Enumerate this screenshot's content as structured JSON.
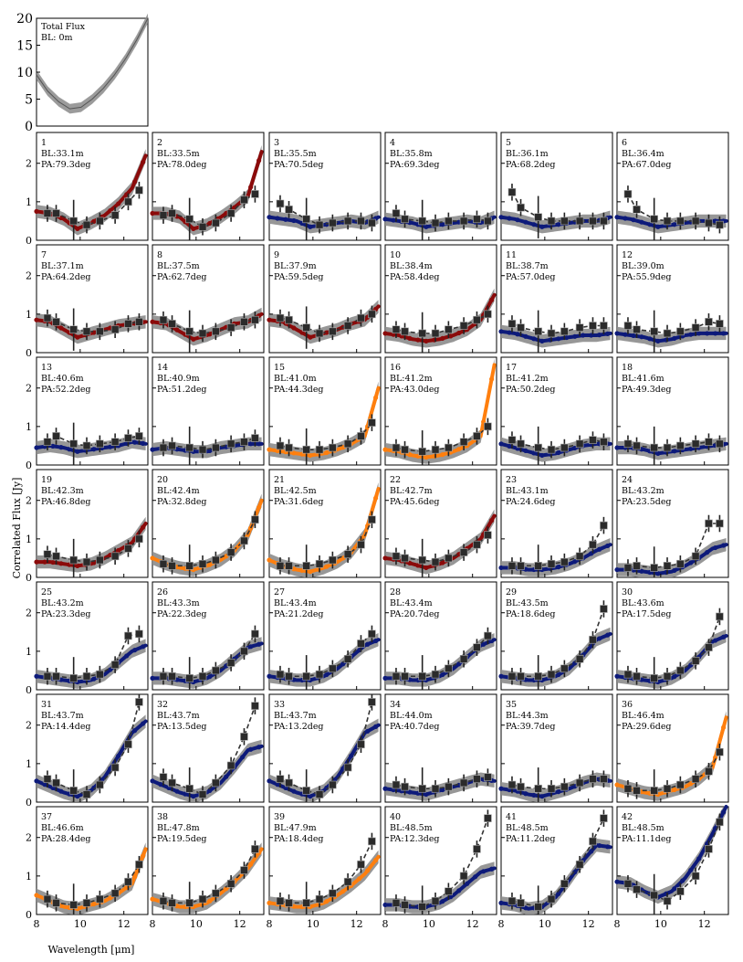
{
  "figure": {
    "ylabel": "Correlated Flux [Jy]",
    "xlabel": "Wavelength [μm]"
  },
  "chart_data": [
    {
      "type": "line",
      "id": "total-flux",
      "label": "Total Flux",
      "baseline": "BL: 0m",
      "xlim": [
        8,
        13
      ],
      "ylim": [
        0,
        20
      ],
      "yticks": [
        0,
        5,
        10,
        15,
        20
      ],
      "x": [
        8.0,
        8.5,
        9.0,
        9.5,
        10.0,
        10.5,
        11.0,
        11.5,
        12.0,
        12.5,
        13.0
      ],
      "y": [
        9.5,
        6.5,
        4.5,
        3.2,
        3.5,
        5.0,
        7.0,
        9.5,
        12.5,
        16.0,
        20.0
      ]
    }
  ],
  "panels": [
    {
      "num": "1",
      "bl": "BL:33.1m",
      "pa": "PA:79.3deg",
      "color": "#8b0a0a",
      "model": [
        0.75,
        0.7,
        0.55,
        0.3,
        0.45,
        0.65,
        0.95,
        1.35,
        2.2
      ],
      "points": [
        0.7,
        0.7,
        0.5,
        0.4,
        0.5,
        0.65,
        1.0,
        1.3
      ]
    },
    {
      "num": "2",
      "bl": "BL:33.5m",
      "pa": "PA:78.0deg",
      "color": "#8b0a0a",
      "model": [
        0.7,
        0.7,
        0.6,
        0.3,
        0.4,
        0.6,
        0.85,
        1.15,
        2.3
      ],
      "points": [
        0.65,
        0.7,
        0.55,
        0.35,
        0.45,
        0.7,
        1.05,
        1.2
      ]
    },
    {
      "num": "3",
      "bl": "BL:35.5m",
      "pa": "PA:70.5deg",
      "color": "#0d1a7a",
      "model": [
        0.6,
        0.55,
        0.5,
        0.35,
        0.4,
        0.45,
        0.5,
        0.45,
        0.6
      ],
      "points": [
        0.95,
        0.8,
        0.55,
        0.4,
        0.45,
        0.5,
        0.5,
        0.45
      ]
    },
    {
      "num": "4",
      "bl": "BL:35.8m",
      "pa": "PA:69.3deg",
      "color": "#0d1a7a",
      "model": [
        0.55,
        0.5,
        0.45,
        0.35,
        0.4,
        0.45,
        0.5,
        0.45,
        0.6
      ],
      "points": [
        0.7,
        0.55,
        0.5,
        0.45,
        0.5,
        0.5,
        0.55,
        0.5
      ]
    },
    {
      "num": "5",
      "bl": "BL:36.1m",
      "pa": "PA:68.2deg",
      "color": "#0d1a7a",
      "model": [
        0.6,
        0.55,
        0.45,
        0.35,
        0.4,
        0.45,
        0.5,
        0.5,
        0.6
      ],
      "points": [
        1.25,
        0.85,
        0.6,
        0.5,
        0.5,
        0.5,
        0.5,
        0.5
      ]
    },
    {
      "num": "6",
      "bl": "BL:36.4m",
      "pa": "PA:67.0deg",
      "color": "#0d1a7a",
      "model": [
        0.6,
        0.55,
        0.45,
        0.35,
        0.4,
        0.45,
        0.5,
        0.5,
        0.5
      ],
      "points": [
        1.2,
        0.8,
        0.55,
        0.5,
        0.5,
        0.5,
        0.45,
        0.4
      ]
    },
    {
      "num": "7",
      "bl": "BL:37.1m",
      "pa": "PA:64.2deg",
      "color": "#8b0a0a",
      "model": [
        0.85,
        0.8,
        0.6,
        0.4,
        0.5,
        0.6,
        0.7,
        0.75,
        0.8
      ],
      "points": [
        0.9,
        0.8,
        0.6,
        0.55,
        0.55,
        0.6,
        0.75,
        0.8
      ]
    },
    {
      "num": "8",
      "bl": "BL:37.5m",
      "pa": "PA:62.7deg",
      "color": "#8b0a0a",
      "model": [
        0.8,
        0.75,
        0.55,
        0.35,
        0.45,
        0.6,
        0.75,
        0.8,
        1.0
      ],
      "points": [
        0.85,
        0.75,
        0.55,
        0.5,
        0.55,
        0.65,
        0.8,
        0.85
      ]
    },
    {
      "num": "9",
      "bl": "BL:37.9m",
      "pa": "PA:59.5deg",
      "color": "#8b0a0a",
      "model": [
        0.85,
        0.8,
        0.6,
        0.4,
        0.5,
        0.6,
        0.75,
        0.85,
        1.2
      ],
      "points": [
        0.9,
        0.85,
        0.65,
        0.5,
        0.55,
        0.7,
        0.9,
        1.0
      ]
    },
    {
      "num": "10",
      "bl": "BL:38.4m",
      "pa": "PA:58.4deg",
      "color": "#8b0a0a",
      "model": [
        0.5,
        0.45,
        0.35,
        0.3,
        0.35,
        0.45,
        0.6,
        0.85,
        1.5
      ],
      "points": [
        0.6,
        0.55,
        0.5,
        0.5,
        0.6,
        0.7,
        0.85,
        1.0
      ]
    },
    {
      "num": "11",
      "bl": "BL:38.7m",
      "pa": "PA:57.0deg",
      "color": "#0d1a7a",
      "model": [
        0.55,
        0.5,
        0.4,
        0.3,
        0.35,
        0.4,
        0.45,
        0.45,
        0.5
      ],
      "points": [
        0.75,
        0.65,
        0.55,
        0.5,
        0.55,
        0.65,
        0.7,
        0.7
      ]
    },
    {
      "num": "12",
      "bl": "BL:39.0m",
      "pa": "PA:55.9deg",
      "color": "#0d1a7a",
      "model": [
        0.5,
        0.45,
        0.4,
        0.3,
        0.35,
        0.45,
        0.5,
        0.5,
        0.5
      ],
      "points": [
        0.7,
        0.6,
        0.55,
        0.5,
        0.55,
        0.65,
        0.8,
        0.75
      ]
    },
    {
      "num": "13",
      "bl": "BL:40.6m",
      "pa": "PA:52.2deg",
      "color": "#0d1a7a",
      "model": [
        0.45,
        0.5,
        0.45,
        0.35,
        0.4,
        0.45,
        0.5,
        0.6,
        0.55
      ],
      "points": [
        0.6,
        0.75,
        0.55,
        0.5,
        0.55,
        0.6,
        0.7,
        0.75
      ]
    },
    {
      "num": "14",
      "bl": "BL:40.9m",
      "pa": "PA:51.2deg",
      "color": "#0d1a7a",
      "model": [
        0.4,
        0.45,
        0.4,
        0.35,
        0.35,
        0.45,
        0.5,
        0.55,
        0.55
      ],
      "points": [
        0.45,
        0.5,
        0.45,
        0.4,
        0.45,
        0.55,
        0.6,
        0.7
      ]
    },
    {
      "num": "15",
      "bl": "BL:41.0m",
      "pa": "PA:44.3deg",
      "color": "#ff7f0e",
      "model": [
        0.4,
        0.35,
        0.3,
        0.25,
        0.3,
        0.4,
        0.55,
        0.75,
        2.0
      ],
      "points": [
        0.5,
        0.45,
        0.4,
        0.4,
        0.45,
        0.55,
        0.75,
        1.1
      ]
    },
    {
      "num": "16",
      "bl": "BL:41.2m",
      "pa": "PA:43.0deg",
      "color": "#ff7f0e",
      "model": [
        0.4,
        0.35,
        0.25,
        0.2,
        0.25,
        0.35,
        0.5,
        0.75,
        2.6
      ],
      "points": [
        0.45,
        0.4,
        0.35,
        0.4,
        0.45,
        0.6,
        0.75,
        1.0
      ]
    },
    {
      "num": "17",
      "bl": "BL:41.2m",
      "pa": "PA:50.2deg",
      "color": "#0d1a7a",
      "model": [
        0.55,
        0.45,
        0.35,
        0.25,
        0.3,
        0.4,
        0.5,
        0.55,
        0.55
      ],
      "points": [
        0.65,
        0.55,
        0.45,
        0.4,
        0.45,
        0.55,
        0.65,
        0.6
      ]
    },
    {
      "num": "18",
      "bl": "BL:41.6m",
      "pa": "PA:49.3deg",
      "color": "#0d1a7a",
      "model": [
        0.45,
        0.45,
        0.4,
        0.3,
        0.35,
        0.4,
        0.45,
        0.5,
        0.55
      ],
      "points": [
        0.55,
        0.5,
        0.45,
        0.45,
        0.5,
        0.55,
        0.6,
        0.55
      ]
    },
    {
      "num": "19",
      "bl": "BL:42.3m",
      "pa": "PA:46.8deg",
      "color": "#8b0a0a",
      "model": [
        0.4,
        0.4,
        0.35,
        0.3,
        0.35,
        0.5,
        0.7,
        0.9,
        1.4
      ],
      "points": [
        0.6,
        0.55,
        0.45,
        0.4,
        0.45,
        0.55,
        0.75,
        1.0
      ]
    },
    {
      "num": "20",
      "bl": "BL:42.4m",
      "pa": "PA:32.8deg",
      "color": "#ff7f0e",
      "model": [
        0.5,
        0.35,
        0.25,
        0.2,
        0.3,
        0.45,
        0.7,
        1.1,
        2.0
      ],
      "points": [
        0.35,
        0.3,
        0.3,
        0.35,
        0.45,
        0.65,
        0.95,
        1.5
      ]
    },
    {
      "num": "21",
      "bl": "BL:42.5m",
      "pa": "PA:31.6deg",
      "color": "#ff7f0e",
      "model": [
        0.45,
        0.3,
        0.2,
        0.15,
        0.25,
        0.4,
        0.65,
        1.1,
        2.3
      ],
      "points": [
        0.3,
        0.3,
        0.3,
        0.35,
        0.45,
        0.6,
        0.85,
        1.5
      ]
    },
    {
      "num": "22",
      "bl": "BL:42.7m",
      "pa": "PA:45.6deg",
      "color": "#8b0a0a",
      "model": [
        0.5,
        0.45,
        0.35,
        0.25,
        0.35,
        0.5,
        0.75,
        1.0,
        1.6
      ],
      "points": [
        0.55,
        0.5,
        0.45,
        0.4,
        0.5,
        0.65,
        0.85,
        1.1
      ]
    },
    {
      "num": "23",
      "bl": "BL:43.1m",
      "pa": "PA:24.6deg",
      "color": "#0d1a7a",
      "model": [
        0.25,
        0.25,
        0.2,
        0.2,
        0.25,
        0.35,
        0.5,
        0.7,
        0.85
      ],
      "points": [
        0.3,
        0.3,
        0.3,
        0.35,
        0.4,
        0.55,
        0.85,
        1.35
      ]
    },
    {
      "num": "24",
      "bl": "BL:43.2m",
      "pa": "PA:23.5deg",
      "color": "#0d1a7a",
      "model": [
        0.2,
        0.2,
        0.15,
        0.1,
        0.15,
        0.3,
        0.5,
        0.75,
        0.85
      ],
      "points": [
        0.25,
        0.3,
        0.25,
        0.3,
        0.35,
        0.55,
        1.4,
        1.4
      ]
    },
    {
      "num": "25",
      "bl": "BL:43.2m",
      "pa": "PA:23.3deg",
      "color": "#0d1a7a",
      "model": [
        0.35,
        0.3,
        0.25,
        0.2,
        0.25,
        0.4,
        0.7,
        1.0,
        1.15
      ],
      "points": [
        0.35,
        0.35,
        0.3,
        0.35,
        0.4,
        0.65,
        1.4,
        1.45
      ]
    },
    {
      "num": "26",
      "bl": "BL:43.3m",
      "pa": "PA:22.3deg",
      "color": "#0d1a7a",
      "model": [
        0.3,
        0.3,
        0.25,
        0.2,
        0.3,
        0.5,
        0.8,
        1.1,
        1.2
      ],
      "points": [
        0.35,
        0.35,
        0.3,
        0.35,
        0.5,
        0.7,
        1.0,
        1.45
      ]
    },
    {
      "num": "27",
      "bl": "BL:43.4m",
      "pa": "PA:21.2deg",
      "color": "#0d1a7a",
      "model": [
        0.35,
        0.3,
        0.25,
        0.25,
        0.35,
        0.55,
        0.85,
        1.15,
        1.3
      ],
      "points": [
        0.4,
        0.35,
        0.35,
        0.4,
        0.55,
        0.8,
        1.2,
        1.45
      ]
    },
    {
      "num": "28",
      "bl": "BL:43.4m",
      "pa": "PA:20.7deg",
      "color": "#0d1a7a",
      "model": [
        0.3,
        0.3,
        0.25,
        0.25,
        0.35,
        0.55,
        0.85,
        1.15,
        1.3
      ],
      "points": [
        0.35,
        0.35,
        0.35,
        0.4,
        0.55,
        0.8,
        1.1,
        1.4
      ]
    },
    {
      "num": "29",
      "bl": "BL:43.5m",
      "pa": "PA:18.6deg",
      "color": "#0d1a7a",
      "model": [
        0.35,
        0.3,
        0.25,
        0.25,
        0.35,
        0.55,
        0.9,
        1.3,
        1.45
      ],
      "points": [
        0.35,
        0.35,
        0.35,
        0.4,
        0.55,
        0.8,
        1.3,
        2.1
      ]
    },
    {
      "num": "30",
      "bl": "BL:43.6m",
      "pa": "PA:17.5deg",
      "color": "#0d1a7a",
      "model": [
        0.35,
        0.3,
        0.25,
        0.2,
        0.3,
        0.5,
        0.85,
        1.25,
        1.4
      ],
      "points": [
        0.4,
        0.35,
        0.3,
        0.35,
        0.5,
        0.75,
        1.1,
        1.9
      ]
    },
    {
      "num": "31",
      "bl": "BL:43.7m",
      "pa": "PA:14.4deg",
      "color": "#0d1a7a",
      "model": [
        0.55,
        0.4,
        0.25,
        0.15,
        0.3,
        0.65,
        1.2,
        1.8,
        2.1
      ],
      "points": [
        0.6,
        0.5,
        0.3,
        0.2,
        0.45,
        0.9,
        1.5,
        2.6
      ]
    },
    {
      "num": "32",
      "bl": "BL:43.7m",
      "pa": "PA:13.5deg",
      "color": "#0d1a7a",
      "model": [
        0.55,
        0.4,
        0.25,
        0.15,
        0.25,
        0.5,
        0.9,
        1.35,
        1.45
      ],
      "points": [
        0.65,
        0.5,
        0.35,
        0.2,
        0.5,
        0.95,
        1.7,
        2.5
      ]
    },
    {
      "num": "33",
      "bl": "BL:43.7m",
      "pa": "PA:13.2deg",
      "color": "#0d1a7a",
      "model": [
        0.55,
        0.4,
        0.25,
        0.15,
        0.3,
        0.65,
        1.2,
        1.8,
        2.0
      ],
      "points": [
        0.6,
        0.5,
        0.3,
        0.2,
        0.45,
        0.9,
        1.5,
        2.6
      ]
    },
    {
      "num": "34",
      "bl": "BL:44.0m",
      "pa": "PA:40.7deg",
      "color": "#0d1a7a",
      "model": [
        0.35,
        0.3,
        0.25,
        0.2,
        0.3,
        0.4,
        0.5,
        0.6,
        0.55
      ],
      "points": [
        0.45,
        0.4,
        0.35,
        0.35,
        0.4,
        0.5,
        0.6,
        0.65
      ]
    },
    {
      "num": "35",
      "bl": "BL:44.3m",
      "pa": "PA:39.7deg",
      "color": "#0d1a7a",
      "model": [
        0.35,
        0.3,
        0.2,
        0.15,
        0.25,
        0.35,
        0.5,
        0.6,
        0.55
      ],
      "points": [
        0.45,
        0.4,
        0.35,
        0.35,
        0.4,
        0.5,
        0.6,
        0.6
      ]
    },
    {
      "num": "36",
      "bl": "BL:46.4m",
      "pa": "PA:29.6deg",
      "color": "#ff7f0e",
      "model": [
        0.45,
        0.35,
        0.25,
        0.2,
        0.3,
        0.4,
        0.6,
        0.9,
        2.2
      ],
      "points": [
        0.35,
        0.3,
        0.3,
        0.35,
        0.45,
        0.6,
        0.8,
        1.3
      ]
    },
    {
      "num": "37",
      "bl": "BL:46.6m",
      "pa": "PA:28.4deg",
      "color": "#ff7f0e",
      "model": [
        0.5,
        0.35,
        0.2,
        0.15,
        0.25,
        0.35,
        0.55,
        0.8,
        1.7
      ],
      "points": [
        0.4,
        0.3,
        0.25,
        0.3,
        0.4,
        0.55,
        0.85,
        1.3
      ]
    },
    {
      "num": "38",
      "bl": "BL:47.8m",
      "pa": "PA:19.5deg",
      "color": "#ff7f0e",
      "model": [
        0.4,
        0.3,
        0.2,
        0.2,
        0.3,
        0.55,
        0.85,
        1.2,
        1.7
      ],
      "points": [
        0.35,
        0.3,
        0.3,
        0.4,
        0.55,
        0.8,
        1.15,
        1.7
      ]
    },
    {
      "num": "39",
      "bl": "BL:47.9m",
      "pa": "PA:18.4deg",
      "color": "#ff7f0e",
      "model": [
        0.3,
        0.25,
        0.2,
        0.2,
        0.3,
        0.5,
        0.75,
        1.05,
        1.5
      ],
      "points": [
        0.35,
        0.3,
        0.3,
        0.4,
        0.55,
        0.85,
        1.3,
        1.9
      ]
    },
    {
      "num": "40",
      "bl": "BL:48.5m",
      "pa": "PA:12.3deg",
      "color": "#0d1a7a",
      "model": [
        0.25,
        0.25,
        0.2,
        0.2,
        0.3,
        0.5,
        0.8,
        1.1,
        1.2
      ],
      "points": [
        0.3,
        0.25,
        0.2,
        0.35,
        0.6,
        1.0,
        1.7,
        2.5
      ]
    },
    {
      "num": "41",
      "bl": "BL:48.5m",
      "pa": "PA:11.2deg",
      "color": "#0d1a7a",
      "model": [
        0.3,
        0.25,
        0.15,
        0.2,
        0.45,
        0.9,
        1.4,
        1.8,
        1.75
      ],
      "points": [
        0.35,
        0.3,
        0.2,
        0.4,
        0.8,
        1.3,
        1.9,
        2.5
      ]
    },
    {
      "num": "42",
      "bl": "BL:48.5m",
      "pa": "PA:11.1deg",
      "color": "#0d1a7a",
      "model": [
        0.85,
        0.8,
        0.6,
        0.45,
        0.6,
        0.95,
        1.45,
        2.1,
        2.8
      ],
      "points": [
        0.8,
        0.65,
        0.5,
        0.35,
        0.6,
        1.0,
        1.7,
        2.4
      ]
    }
  ],
  "grid_axis": {
    "xlim": [
      8,
      13.1
    ],
    "ylim": [
      0,
      2.8
    ],
    "yticks": [
      "0",
      "1",
      "2"
    ],
    "xticks": [
      "8",
      "10",
      "12"
    ]
  }
}
